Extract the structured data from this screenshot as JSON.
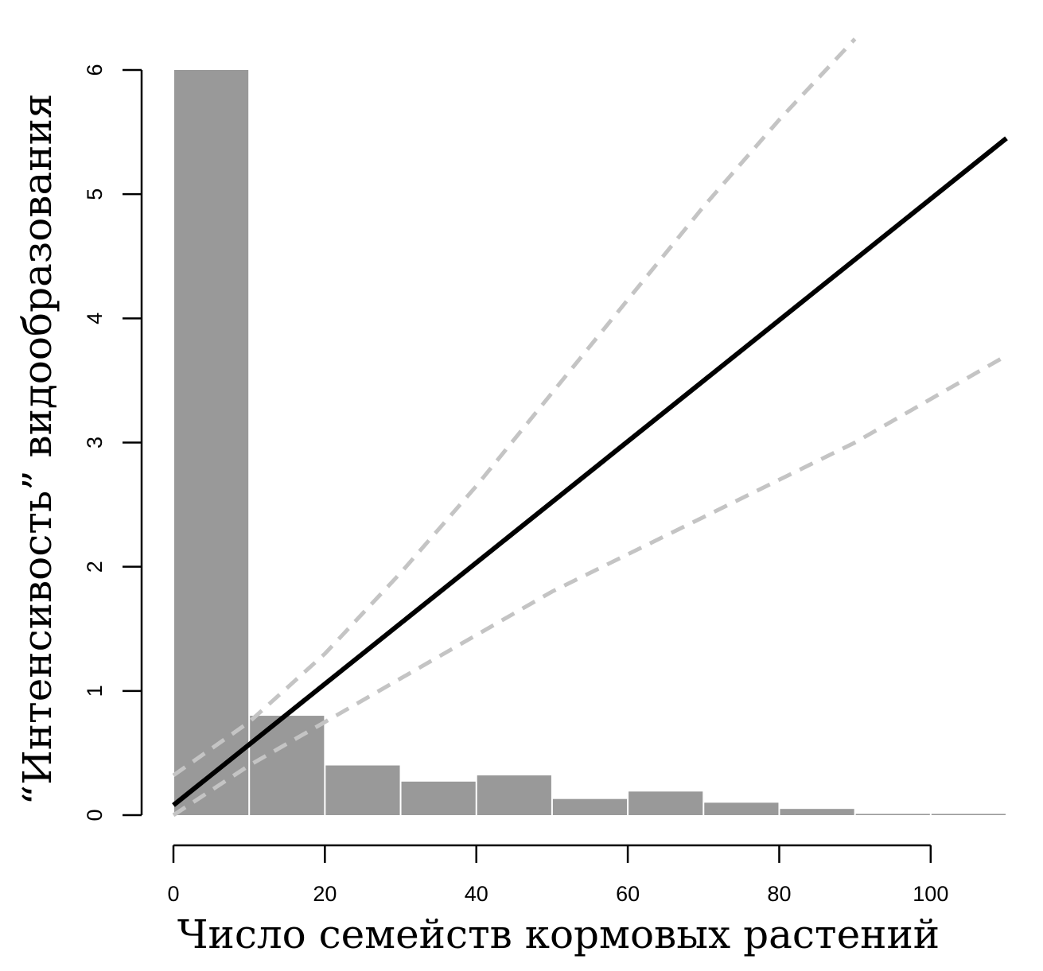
{
  "chart_data": {
    "type": "bar",
    "xlabel": "Число семейств кормовых растений",
    "ylabel": "“Интенсивость” видообразования",
    "xlim": [
      0,
      110
    ],
    "ylim": [
      0,
      6
    ],
    "x_ticks": [
      "0",
      "20",
      "40",
      "60",
      "80",
      "100"
    ],
    "y_ticks": [
      "0",
      "1",
      "2",
      "3",
      "4",
      "5",
      "6"
    ],
    "grid": false,
    "legend": "none",
    "bars": {
      "color": "#999999",
      "bin_edges": [
        0,
        10,
        20,
        30,
        40,
        50,
        60,
        70,
        80,
        90,
        100,
        110
      ],
      "values": [
        6.0,
        0.8,
        0.4,
        0.27,
        0.32,
        0.13,
        0.19,
        0.1,
        0.05,
        0.01,
        0.01
      ]
    },
    "series": [
      {
        "style": "solid",
        "color": "#000000",
        "x": [
          0,
          110
        ],
        "y": [
          0.08,
          5.45
        ]
      },
      {
        "style": "dashed",
        "color": "#c4c4c4",
        "x": [
          0,
          10,
          20,
          30,
          40,
          50,
          60,
          70,
          80,
          90
        ],
        "y": [
          0.32,
          0.75,
          1.3,
          1.95,
          2.65,
          3.4,
          4.15,
          4.9,
          5.6,
          6.25
        ]
      },
      {
        "style": "dashed",
        "color": "#c4c4c4",
        "x": [
          0,
          10,
          20,
          30,
          40,
          50,
          60,
          70,
          80,
          90,
          100,
          110
        ],
        "y": [
          0.0,
          0.4,
          0.75,
          1.1,
          1.45,
          1.8,
          2.1,
          2.4,
          2.7,
          3.0,
          3.35,
          3.7
        ]
      }
    ]
  }
}
